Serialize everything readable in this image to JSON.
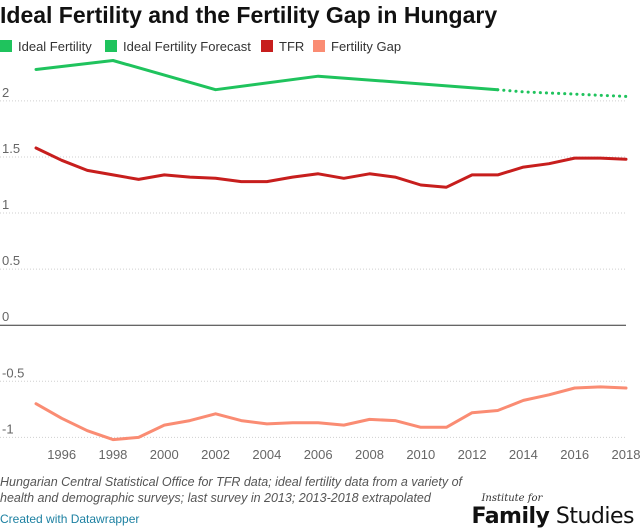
{
  "title": "Ideal Fertility and the Fertility Gap in Hungary",
  "legend": [
    {
      "label": "Ideal Fertility",
      "color": "#1fc35d"
    },
    {
      "label": "Ideal Fertility Forecast",
      "color": "#1fc35d"
    },
    {
      "label": "TFR",
      "color": "#c71e1d"
    },
    {
      "label": "Fertility Gap",
      "color": "#fa8c73"
    }
  ],
  "note": "Hungarian Central Statistical Office for TFR data; ideal fertility data from a variety of health and demographic surveys; last survey in 2013; 2013-2018 extrapolated",
  "credit": "Created with Datawrapper",
  "logo": {
    "small": "Institute for",
    "main_bold": "Family",
    "main_regular": "Studies"
  },
  "chart_data": {
    "type": "line",
    "title": "Ideal Fertility and the Fertility Gap in Hungary",
    "xlabel": "",
    "ylabel": "",
    "xlim": [
      1995,
      2018
    ],
    "ylim": [
      -1.05,
      2.4
    ],
    "x_ticks": [
      1996,
      1998,
      2000,
      2002,
      2004,
      2006,
      2008,
      2010,
      2012,
      2014,
      2016,
      2018
    ],
    "y_ticks": [
      -1,
      -0.5,
      0,
      0.5,
      1,
      1.5,
      2
    ],
    "y_tick_labels": [
      "-1",
      "-0.5",
      "0",
      "0.5",
      "1",
      "1.5",
      "2"
    ],
    "grid": "horizontal dotted",
    "legend_position": "top",
    "series": [
      {
        "name": "Ideal Fertility",
        "color": "#1fc35d",
        "style": "solid",
        "x": [
          1995,
          1998,
          2002,
          2006,
          2013
        ],
        "values": [
          2.28,
          2.36,
          2.1,
          2.22,
          2.1
        ]
      },
      {
        "name": "Ideal Fertility Forecast",
        "color": "#1fc35d",
        "style": "dotted",
        "x": [
          2013,
          2014,
          2015,
          2016,
          2017,
          2018
        ],
        "values": [
          2.1,
          2.08,
          2.07,
          2.06,
          2.05,
          2.04
        ]
      },
      {
        "name": "TFR",
        "color": "#c71e1d",
        "style": "solid",
        "x": [
          1995,
          1996,
          1997,
          1998,
          1999,
          2000,
          2001,
          2002,
          2003,
          2004,
          2005,
          2006,
          2007,
          2008,
          2009,
          2010,
          2011,
          2012,
          2013,
          2014,
          2015,
          2016,
          2017,
          2018
        ],
        "values": [
          1.58,
          1.47,
          1.38,
          1.34,
          1.3,
          1.34,
          1.32,
          1.31,
          1.28,
          1.28,
          1.32,
          1.35,
          1.31,
          1.35,
          1.32,
          1.25,
          1.23,
          1.34,
          1.34,
          1.41,
          1.44,
          1.49,
          1.49,
          1.48
        ]
      },
      {
        "name": "Fertility Gap",
        "color": "#fa8c73",
        "style": "solid",
        "x": [
          1995,
          1996,
          1997,
          1998,
          1999,
          2000,
          2001,
          2002,
          2003,
          2004,
          2005,
          2006,
          2007,
          2008,
          2009,
          2010,
          2011,
          2012,
          2013,
          2014,
          2015,
          2016,
          2017,
          2018
        ],
        "values": [
          -0.7,
          -0.83,
          -0.94,
          -1.02,
          -1.0,
          -0.89,
          -0.85,
          -0.79,
          -0.85,
          -0.88,
          -0.87,
          -0.87,
          -0.89,
          -0.84,
          -0.85,
          -0.91,
          -0.91,
          -0.78,
          -0.76,
          -0.67,
          -0.62,
          -0.56,
          -0.55,
          -0.56
        ]
      }
    ]
  }
}
